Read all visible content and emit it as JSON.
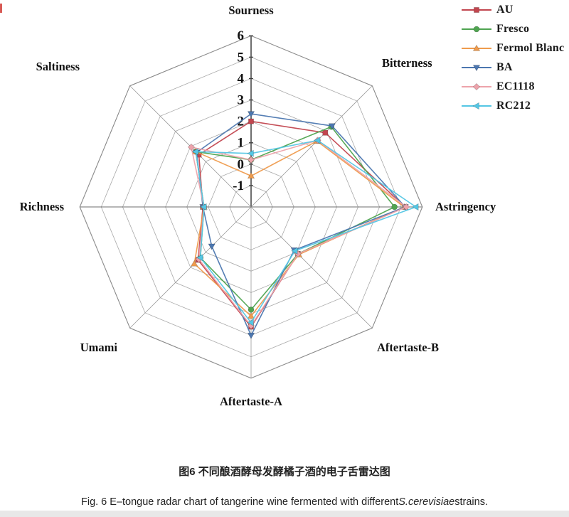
{
  "figure": {
    "caption_cn": "图6 不同酿酒酵母发酵橘子酒的电子舌雷达图",
    "caption_en_prefix": "Fig. 6 E–tongue radar chart of tangerine wine fermented with different",
    "caption_en_italic": "S.cerevisiae",
    "caption_en_suffix": "strains."
  },
  "chart_data": {
    "type": "radar",
    "title": "",
    "axes": [
      "Sourness",
      "Bitterness",
      "Astringency",
      "Aftertaste-B",
      "Aftertaste-A",
      "Umami",
      "Richness",
      "Saltiness"
    ],
    "scale": {
      "min": -2,
      "max": 6,
      "tick_labels": [
        "6",
        "5",
        "4",
        "3",
        "2",
        "1",
        "0",
        "-1"
      ],
      "tick_values": [
        6,
        5,
        4,
        3,
        2,
        1,
        0,
        -1
      ],
      "grid_levels": [
        -1,
        0,
        1,
        2,
        3,
        4,
        5,
        6
      ]
    },
    "grid": true,
    "legend_position": "top-right",
    "series": [
      {
        "name": "AU",
        "color": "#c2464f",
        "marker": "square",
        "values": [
          2.0,
          2.9,
          5.2,
          1.1,
          3.6,
          1.5,
          0.25,
          1.45
        ]
      },
      {
        "name": "Fresco",
        "color": "#4fa450",
        "marker": "circle",
        "values": [
          0.2,
          3.3,
          4.7,
          1.1,
          2.8,
          1.35,
          0.2,
          1.65
        ]
      },
      {
        "name": "Fermol Blanc",
        "color": "#ef9b4d",
        "marker": "triangle-up",
        "values": [
          -0.55,
          2.35,
          5.15,
          1.15,
          3.1,
          1.75,
          0.2,
          1.65
        ]
      },
      {
        "name": "BA",
        "color": "#4c77b0",
        "marker": "triangle-down",
        "values": [
          2.35,
          3.35,
          5.2,
          0.85,
          4.0,
          0.6,
          0.25,
          1.6
        ]
      },
      {
        "name": "EC1118",
        "color": "#eda3ab",
        "marker": "diamond",
        "values": [
          0.2,
          2.4,
          5.25,
          1.1,
          3.55,
          1.45,
          0.2,
          1.95
        ]
      },
      {
        "name": "RC212",
        "color": "#54c6e4",
        "marker": "triangle-left",
        "values": [
          0.5,
          2.4,
          5.7,
          0.9,
          3.4,
          1.35,
          0.2,
          1.65
        ]
      }
    ]
  }
}
